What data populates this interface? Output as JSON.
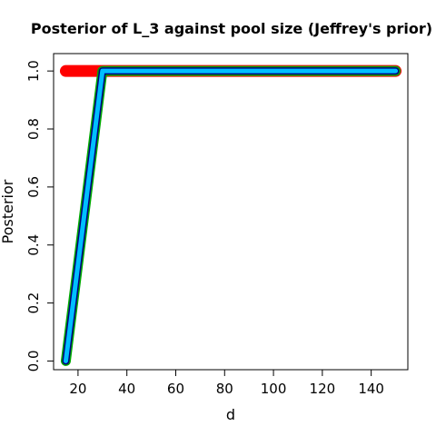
{
  "chart_data": {
    "type": "line",
    "title": "Posterior of L_3 against pool size (Jeffrey's prior)",
    "xlabel": "d",
    "ylabel": "Posterior",
    "xlim": [
      10,
      155
    ],
    "ylim": [
      -0.03,
      1.06
    ],
    "xticks": [
      20,
      40,
      60,
      80,
      100,
      120,
      140
    ],
    "yticks": [
      0.0,
      0.2,
      0.4,
      0.6,
      0.8,
      1.0
    ],
    "xtick_labels": [
      "20",
      "40",
      "60",
      "80",
      "100",
      "120",
      "140"
    ],
    "ytick_labels": [
      "0.0",
      "0.2",
      "0.4",
      "0.6",
      "0.8",
      "1.0"
    ],
    "grid": false,
    "series": [
      {
        "color": "#ff0000",
        "x": [
          15,
          150
        ],
        "y": [
          1.0,
          1.0
        ]
      },
      {
        "color": "#00aa00",
        "x": [
          15,
          30,
          150
        ],
        "y": [
          0.0,
          1.0,
          1.0
        ]
      },
      {
        "color": "#000080",
        "x": [
          15,
          30,
          150
        ],
        "y": [
          0.0,
          1.0,
          1.0
        ]
      },
      {
        "color": "#00bfff",
        "x": [
          15,
          30,
          150
        ],
        "y": [
          0.0,
          1.0,
          1.0
        ]
      }
    ]
  }
}
